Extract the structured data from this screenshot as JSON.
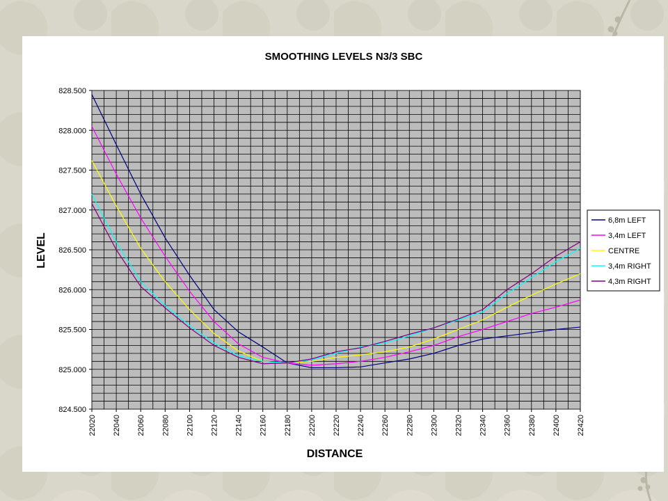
{
  "chart_data": {
    "type": "line",
    "title": "SMOOTHING LEVELS N3/3 SBC",
    "xlabel": "DISTANCE",
    "ylabel": "LEVEL",
    "xlim": [
      22020,
      22420
    ],
    "ylim": [
      824.5,
      828.5
    ],
    "x_ticks": [
      "22020",
      "22040",
      "22060",
      "22080",
      "22100",
      "22120",
      "22140",
      "22160",
      "22180",
      "22200",
      "22220",
      "22240",
      "22260",
      "22280",
      "22300",
      "22320",
      "22340",
      "22360",
      "22380",
      "22400",
      "22420"
    ],
    "y_ticks": [
      "824.500",
      "825.000",
      "825.500",
      "826.000",
      "826.500",
      "827.000",
      "827.500",
      "828.000",
      "828.500"
    ],
    "grid": true,
    "legend_position": "right",
    "plot_background": "#bcbcbc",
    "x": [
      22020,
      22040,
      22060,
      22080,
      22100,
      22120,
      22140,
      22160,
      22180,
      22200,
      22220,
      22240,
      22260,
      22280,
      22300,
      22320,
      22340,
      22360,
      22380,
      22400,
      22420
    ],
    "series": [
      {
        "name": "6,8m LEFT",
        "color": "#000080",
        "values": [
          828.45,
          827.82,
          827.2,
          826.65,
          826.18,
          825.75,
          825.47,
          825.28,
          825.08,
          825.02,
          825.02,
          825.03,
          825.08,
          825.13,
          825.2,
          825.3,
          825.38,
          825.42,
          825.46,
          825.5,
          825.53
        ]
      },
      {
        "name": "3,4m LEFT",
        "color": "#ff00ff",
        "values": [
          828.05,
          827.45,
          826.9,
          826.42,
          825.98,
          825.6,
          825.32,
          825.15,
          825.08,
          825.05,
          825.07,
          825.1,
          825.15,
          825.22,
          825.3,
          825.41,
          825.5,
          825.6,
          825.7,
          825.78,
          825.87
        ]
      },
      {
        "name": "CENTRE",
        "color": "#ffff00",
        "values": [
          827.62,
          827.05,
          826.52,
          826.1,
          825.75,
          825.45,
          825.23,
          825.1,
          825.08,
          825.1,
          825.15,
          825.18,
          825.22,
          825.28,
          825.38,
          825.5,
          825.62,
          825.78,
          825.93,
          826.07,
          826.2
        ]
      },
      {
        "name": "3,4m RIGHT",
        "color": "#00ffff",
        "values": [
          827.2,
          826.6,
          826.1,
          825.8,
          825.55,
          825.33,
          825.17,
          825.1,
          825.08,
          825.12,
          825.2,
          825.28,
          825.33,
          825.42,
          825.52,
          825.62,
          825.72,
          825.95,
          826.15,
          826.35,
          826.52
        ]
      },
      {
        "name": "4,3m RIGHT",
        "color": "#800080",
        "values": [
          827.08,
          826.5,
          826.04,
          825.77,
          825.52,
          825.3,
          825.15,
          825.07,
          825.08,
          825.13,
          825.22,
          825.27,
          825.35,
          825.44,
          825.52,
          825.63,
          825.75,
          826.0,
          826.2,
          826.42,
          826.6
        ]
      }
    ]
  }
}
